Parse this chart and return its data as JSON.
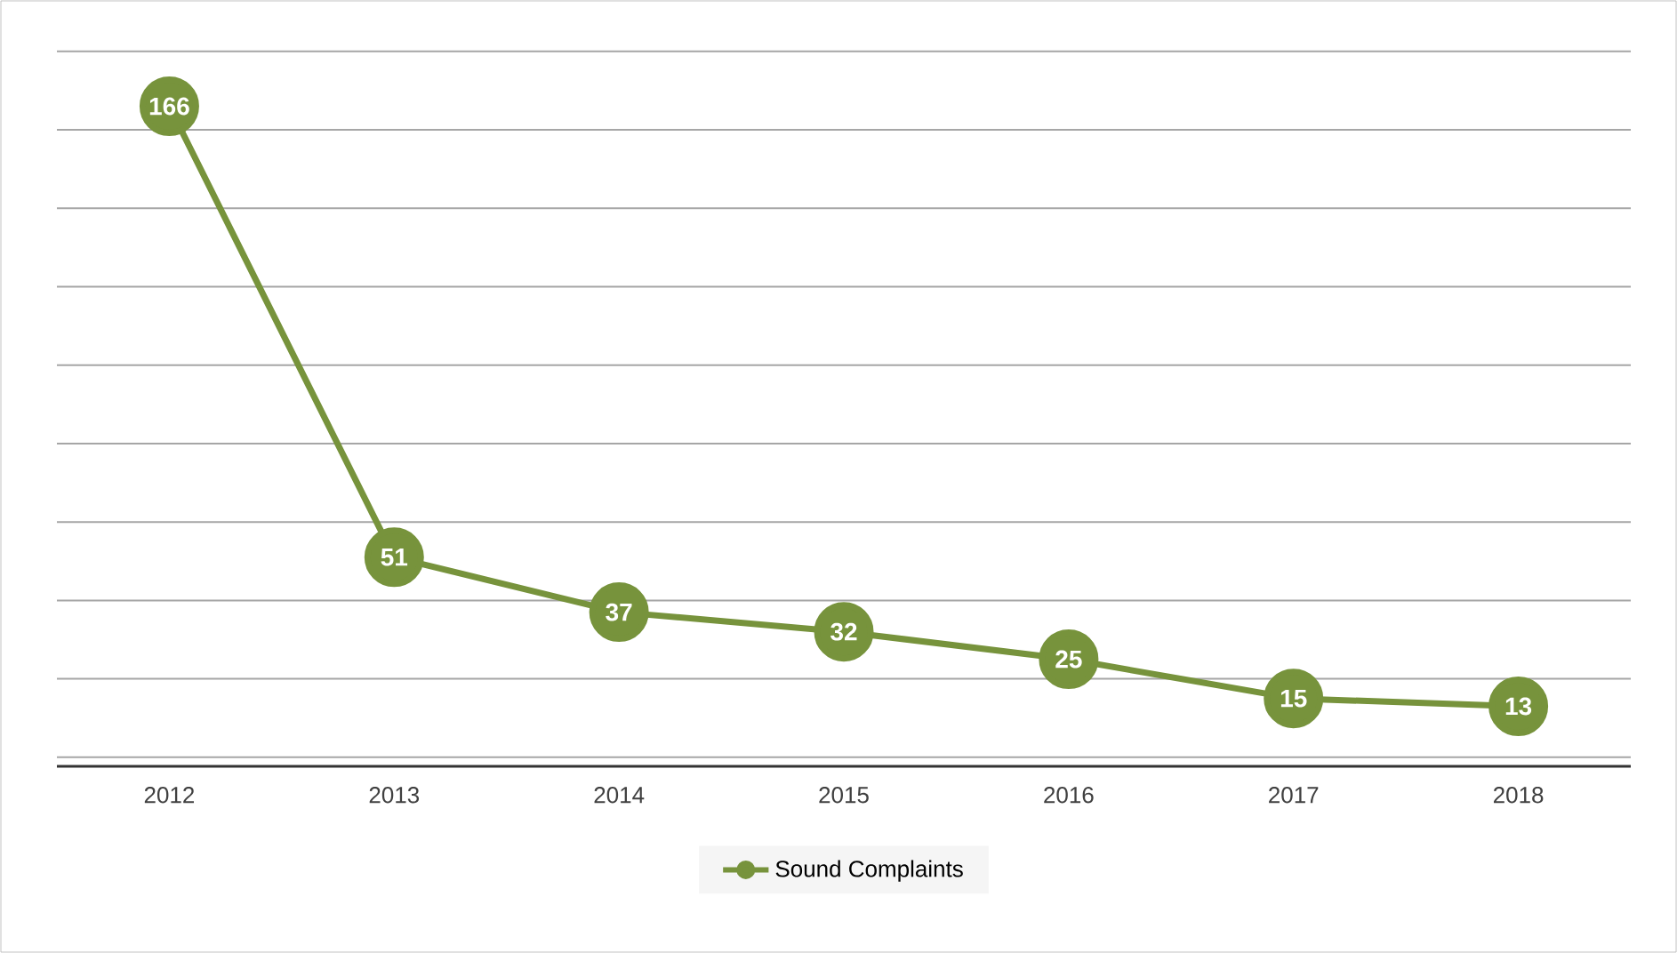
{
  "chart_data": {
    "type": "line",
    "categories": [
      "2012",
      "2013",
      "2014",
      "2015",
      "2016",
      "2017",
      "2018"
    ],
    "series": [
      {
        "name": "Sound Complaints",
        "color": "#77933c",
        "values": [
          166,
          51,
          37,
          32,
          25,
          15,
          13
        ]
      }
    ],
    "grid": "y",
    "legend": "bottom",
    "marker": "circle",
    "line_style": "solid",
    "data_labels": true,
    "tick_labels": "x"
  }
}
